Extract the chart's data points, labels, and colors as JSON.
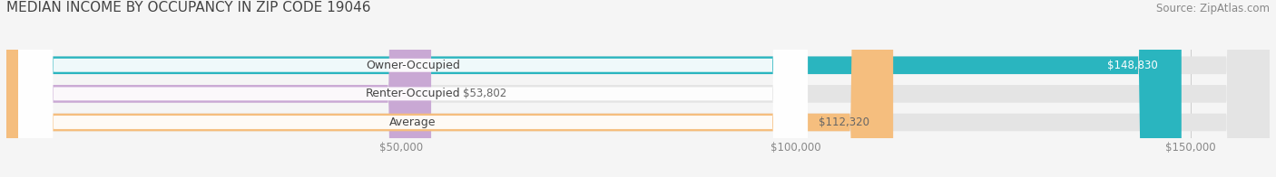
{
  "title": "MEDIAN INCOME BY OCCUPANCY IN ZIP CODE 19046",
  "source": "Source: ZipAtlas.com",
  "categories": [
    "Owner-Occupied",
    "Renter-Occupied",
    "Average"
  ],
  "values": [
    148830,
    53802,
    112320
  ],
  "bar_colors": [
    "#2ab5bf",
    "#c9a8d4",
    "#f5be7e"
  ],
  "value_labels": [
    "$148,830",
    "$53,802",
    "$112,320"
  ],
  "value_label_colors": [
    "#ffffff",
    "#666666",
    "#666666"
  ],
  "xmax": 160000,
  "xticks": [
    50000,
    100000,
    150000
  ],
  "xticklabels": [
    "$50,000",
    "$100,000",
    "$150,000"
  ],
  "background_color": "#f5f5f5",
  "bar_bg_color": "#e4e4e4",
  "title_fontsize": 11,
  "source_fontsize": 8.5,
  "label_fontsize": 9,
  "value_fontsize": 8.5
}
